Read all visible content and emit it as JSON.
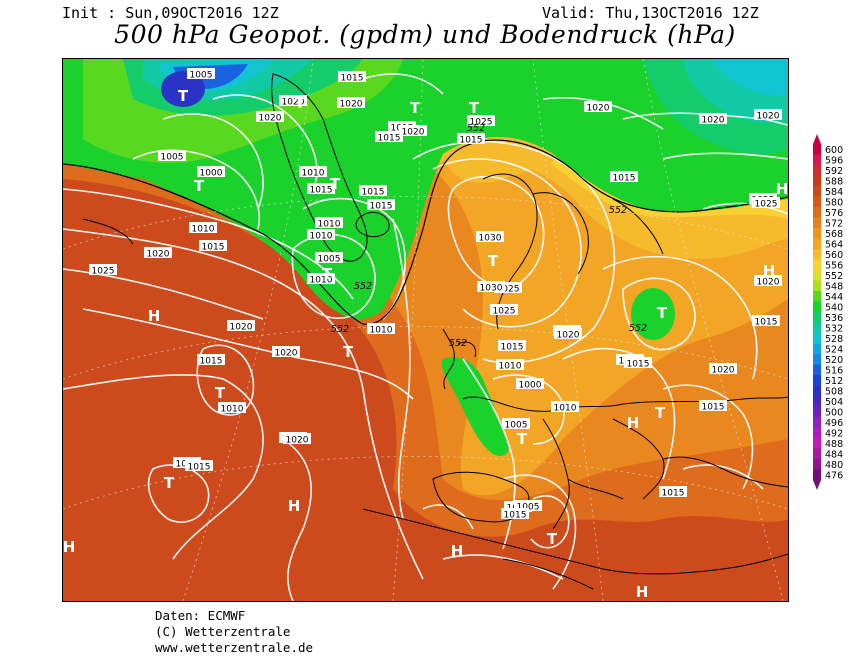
{
  "header": {
    "init": "Init : Sun,09OCT2016 12Z",
    "valid": "Valid: Thu,13OCT2016 12Z",
    "title": "500 hPa Geopot. (gpdm) und Bodendruck (hPa)"
  },
  "legend": {
    "labels": [
      "600",
      "596",
      "592",
      "588",
      "584",
      "580",
      "576",
      "572",
      "568",
      "564",
      "560",
      "556",
      "552",
      "548",
      "544",
      "540",
      "536",
      "532",
      "528",
      "524",
      "520",
      "516",
      "512",
      "508",
      "504",
      "500",
      "496",
      "492",
      "488",
      "484",
      "480",
      "476"
    ],
    "colors": [
      "#c7003f",
      "#d61a4b",
      "#cf2e2e",
      "#c43d1e",
      "#c84a1a",
      "#d25a1a",
      "#de6c1c",
      "#e7801e",
      "#ee9220",
      "#f3a626",
      "#f6bb2c",
      "#fad132",
      "#d9e02e",
      "#a8e021",
      "#58d81f",
      "#1bd12c",
      "#15cc6b",
      "#12c9a5",
      "#10c4d0",
      "#12a7e0",
      "#1888e6",
      "#1a63e0",
      "#1a47d6",
      "#2b33c7",
      "#4828c2",
      "#6a23c0",
      "#8e20be",
      "#ae1dbb",
      "#c41bb3",
      "#a818a0",
      "#8c1590",
      "#701078"
    ]
  },
  "map": {
    "contour_labels": [
      "1005",
      "1015",
      "1020",
      "1020",
      "1020",
      "1015",
      "1020",
      "1015",
      "1025",
      "1015",
      "1020",
      "1020",
      "1005",
      "1015",
      "1020",
      "1015",
      "1010",
      "1000",
      "1015",
      "1010",
      "1010",
      "1015",
      "1020",
      "1025",
      "1020",
      "1010",
      "1005",
      "1015",
      "1010",
      "1020",
      "1030",
      "1025",
      "1020",
      "1025",
      "1030",
      "1025",
      "1010",
      "1020",
      "1015",
      "1020",
      "1015",
      "1010",
      "1010",
      "1015",
      "1010",
      "1015",
      "1000",
      "1020",
      "1015",
      "1010",
      "1005",
      "1010",
      "1005",
      "1015",
      "1015",
      "1015",
      "1015",
      "1020",
      "1015",
      "1025"
    ],
    "pressure_labels_552": [
      "552",
      "552",
      "552",
      "552",
      "552",
      "552"
    ],
    "pressure_markers": [
      {
        "type": "T"
      },
      {
        "type": "T"
      },
      {
        "type": "T"
      },
      {
        "type": "T"
      },
      {
        "type": "T"
      },
      {
        "type": "T"
      },
      {
        "type": "T"
      },
      {
        "type": "T"
      },
      {
        "type": "T"
      },
      {
        "type": "T"
      },
      {
        "type": "T"
      },
      {
        "type": "T"
      },
      {
        "type": "T"
      },
      {
        "type": "T"
      },
      {
        "type": "T"
      },
      {
        "type": "H"
      },
      {
        "type": "H"
      },
      {
        "type": "H"
      },
      {
        "type": "H"
      },
      {
        "type": "H"
      },
      {
        "type": "H"
      },
      {
        "type": "H"
      },
      {
        "type": "H"
      }
    ]
  },
  "footer": {
    "source": "Daten: ECMWF",
    "copyright": "(C) Wetterzentrale",
    "url": "www.wetterzentrale.de"
  }
}
